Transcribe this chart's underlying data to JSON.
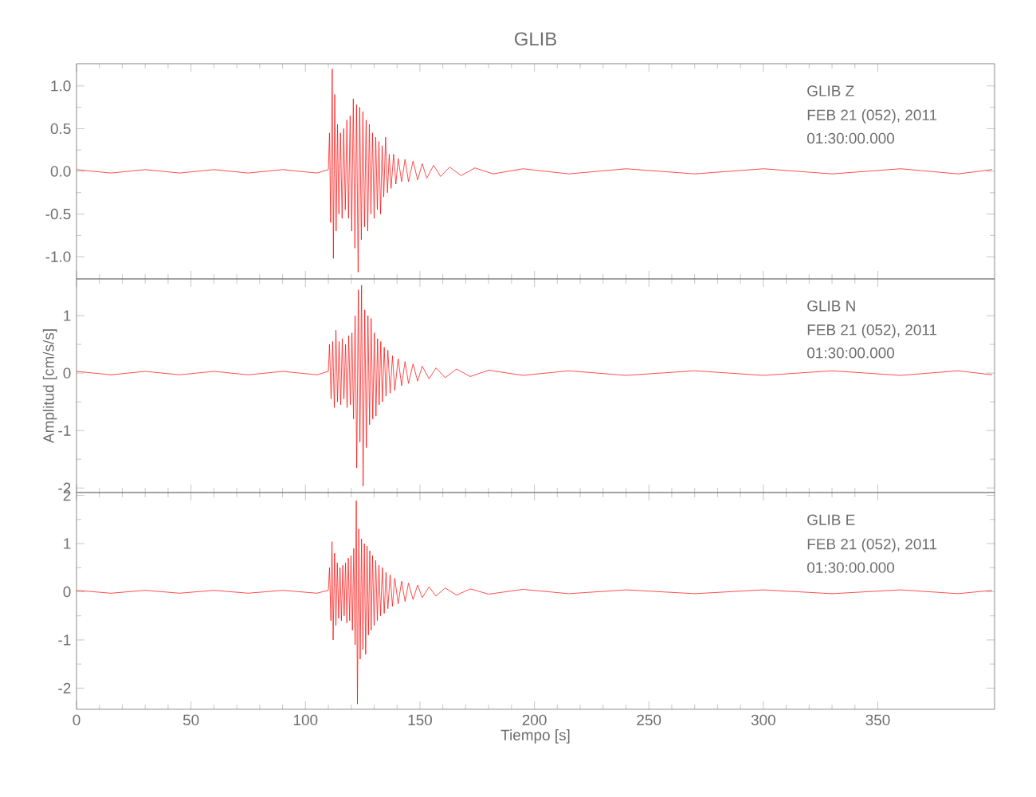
{
  "chart_data": [
    {
      "type": "line",
      "title": "GLIB",
      "color": "#ff0000",
      "xlim": [
        0,
        401
      ],
      "xticks": [
        0,
        50,
        100,
        150,
        200,
        250,
        300,
        350
      ],
      "ylim": [
        -1.26,
        1.26
      ],
      "yticks": [
        {
          "value": -1,
          "label": "-1.0"
        },
        {
          "value": -0.5,
          "label": "-0.5"
        },
        {
          "value": 0,
          "label": "0.0"
        },
        {
          "value": 0.5,
          "label": "0.5"
        },
        {
          "value": 1,
          "label": "1.0"
        }
      ],
      "tick_labels": "y",
      "annotations": [
        "GLIB   Z",
        "FEB 21 (052), 2011",
        "01:30:00.000"
      ],
      "x": [
        0,
        15,
        30,
        45,
        60,
        75,
        90,
        105,
        110,
        110.5,
        111,
        111.7,
        112.2,
        112.8,
        113.4,
        114,
        114.6,
        115.3,
        116,
        116.7,
        117.4,
        118.1,
        118.8,
        119.5,
        120.2,
        120.9,
        121.6,
        122.3,
        123,
        123.7,
        124.4,
        125.1,
        125.8,
        126.5,
        127.2,
        127.9,
        128.6,
        129.3,
        130,
        130.7,
        131.4,
        132.1,
        132.8,
        133.5,
        134.2,
        135,
        135.8,
        136.6,
        137.4,
        138.5,
        139.5,
        140.5,
        142,
        143.5,
        145,
        147,
        149,
        151,
        153,
        156,
        159,
        163,
        168,
        174,
        182,
        195,
        215,
        240,
        270,
        300,
        330,
        360,
        385,
        400
      ],
      "values": [
        0.02,
        -0.02,
        0.02,
        -0.02,
        0.02,
        -0.02,
        0.02,
        -0.02,
        0.02,
        0.45,
        -0.6,
        1.2,
        -1.02,
        0.9,
        -0.7,
        0.55,
        -0.5,
        0.45,
        -0.55,
        0.5,
        -0.45,
        0.6,
        -0.55,
        0.65,
        -0.7,
        0.85,
        -0.9,
        0.78,
        -1.18,
        0.75,
        -0.8,
        0.7,
        -0.65,
        0.6,
        -0.7,
        0.55,
        -0.5,
        0.45,
        -0.55,
        0.4,
        -0.45,
        0.35,
        -0.5,
        0.3,
        -0.3,
        0.4,
        -0.25,
        0.2,
        -0.2,
        0.2,
        -0.15,
        0.15,
        -0.12,
        0.14,
        -0.12,
        0.12,
        -0.1,
        0.09,
        -0.08,
        0.07,
        -0.06,
        0.05,
        -0.05,
        0.04,
        -0.03,
        0.03,
        -0.03,
        0.03,
        -0.03,
        0.03,
        -0.03,
        0.03,
        -0.03,
        0.02
      ]
    },
    {
      "type": "line",
      "ylabel": "Amplitud [cm/s/s]",
      "color": "#ff0000",
      "xlim": [
        0,
        401
      ],
      "xticks": [
        0,
        50,
        100,
        150,
        200,
        250,
        300,
        350
      ],
      "ylim": [
        -2.08,
        1.64
      ],
      "yticks": [
        -2,
        -1,
        0,
        1
      ],
      "tick_labels": "y",
      "annotations": [
        "GLIB   N",
        "FEB 21 (052), 2011",
        "01:30:00.000"
      ],
      "x": [
        0,
        15,
        30,
        45,
        60,
        75,
        90,
        105,
        110,
        110.5,
        111.2,
        111.9,
        112.6,
        113.3,
        114,
        114.7,
        115.4,
        116.1,
        116.8,
        117.5,
        118.2,
        118.9,
        119.6,
        120.3,
        121,
        121.7,
        122.4,
        123.1,
        123.8,
        124.5,
        125.2,
        125.9,
        126.6,
        127.3,
        128,
        128.7,
        129.4,
        130.1,
        130.8,
        131.5,
        132.2,
        132.9,
        133.6,
        134.4,
        135.2,
        136,
        137,
        138,
        139,
        140.5,
        142,
        143.5,
        145,
        147,
        149,
        151,
        154,
        157,
        161,
        166,
        172,
        180,
        195,
        215,
        240,
        270,
        300,
        330,
        360,
        385,
        400
      ],
      "values": [
        0.03,
        -0.03,
        0.03,
        -0.03,
        0.03,
        -0.03,
        0.03,
        -0.03,
        0.03,
        0.5,
        -0.45,
        0.55,
        -0.6,
        0.75,
        -0.5,
        0.55,
        -0.55,
        0.6,
        -0.45,
        0.5,
        -0.6,
        0.65,
        -0.55,
        0.7,
        -0.8,
        1.0,
        -1.65,
        1.45,
        -1.2,
        1.53,
        -1.97,
        1.1,
        -1.3,
        1.0,
        -0.9,
        0.95,
        -0.8,
        0.7,
        -0.75,
        0.6,
        -0.55,
        0.55,
        -0.5,
        0.45,
        -0.4,
        0.4,
        -0.35,
        0.3,
        -0.3,
        0.25,
        -0.22,
        0.2,
        -0.18,
        0.16,
        -0.14,
        0.12,
        -0.1,
        0.09,
        -0.08,
        0.07,
        -0.06,
        0.05,
        -0.04,
        0.04,
        -0.04,
        0.04,
        -0.04,
        0.04,
        -0.04,
        0.04,
        -0.03
      ]
    },
    {
      "type": "line",
      "xlabel": "Tiempo [s]",
      "color": "#ff0000",
      "xlim": [
        0,
        401
      ],
      "xticks": [
        0,
        50,
        100,
        150,
        200,
        250,
        300,
        350
      ],
      "ylim": [
        -2.44,
        2.06
      ],
      "yticks": [
        -2,
        -1,
        0,
        1,
        2
      ],
      "annotations": [
        "GLIB   E",
        "FEB 21 (052), 2011",
        "01:30:00.000"
      ],
      "x": [
        0,
        15,
        30,
        45,
        60,
        75,
        90,
        105,
        110,
        110.5,
        111.1,
        111.6,
        112.1,
        112.7,
        113.3,
        113.9,
        114.5,
        115.1,
        115.7,
        116.3,
        116.9,
        117.5,
        118.1,
        118.7,
        119.3,
        119.9,
        120.5,
        121.1,
        121.7,
        122.2,
        122.7,
        123.3,
        123.9,
        124.5,
        125.1,
        125.7,
        126.3,
        126.9,
        127.5,
        128.1,
        128.7,
        129.3,
        130,
        130.7,
        131.4,
        132.1,
        132.8,
        133.6,
        134.4,
        135.2,
        136,
        137,
        138,
        139,
        140.5,
        142,
        143.5,
        145,
        147,
        149,
        151,
        154,
        157,
        161,
        166,
        172,
        180,
        195,
        215,
        240,
        270,
        300,
        330,
        360,
        385,
        400
      ],
      "values": [
        0.03,
        -0.03,
        0.03,
        -0.03,
        0.03,
        -0.03,
        0.03,
        -0.03,
        0.03,
        0.5,
        -0.6,
        1.04,
        -1.0,
        0.8,
        -0.7,
        0.6,
        -0.55,
        0.5,
        -0.6,
        0.55,
        -0.5,
        0.6,
        -0.65,
        0.7,
        -0.6,
        0.75,
        -0.8,
        0.9,
        -1.1,
        1.89,
        -2.33,
        1.3,
        -1.4,
        1.1,
        -1.2,
        1.0,
        -1.3,
        0.95,
        -0.9,
        0.85,
        -0.8,
        0.75,
        -0.7,
        0.65,
        -0.6,
        0.55,
        -0.5,
        0.5,
        -0.45,
        0.4,
        -0.35,
        0.35,
        -0.3,
        0.28,
        -0.25,
        0.22,
        -0.2,
        0.18,
        -0.16,
        0.14,
        -0.12,
        0.1,
        -0.09,
        0.08,
        -0.07,
        0.06,
        -0.05,
        0.05,
        -0.04,
        0.04,
        -0.04,
        0.04,
        -0.04,
        0.04,
        -0.04,
        0.03
      ]
    }
  ]
}
